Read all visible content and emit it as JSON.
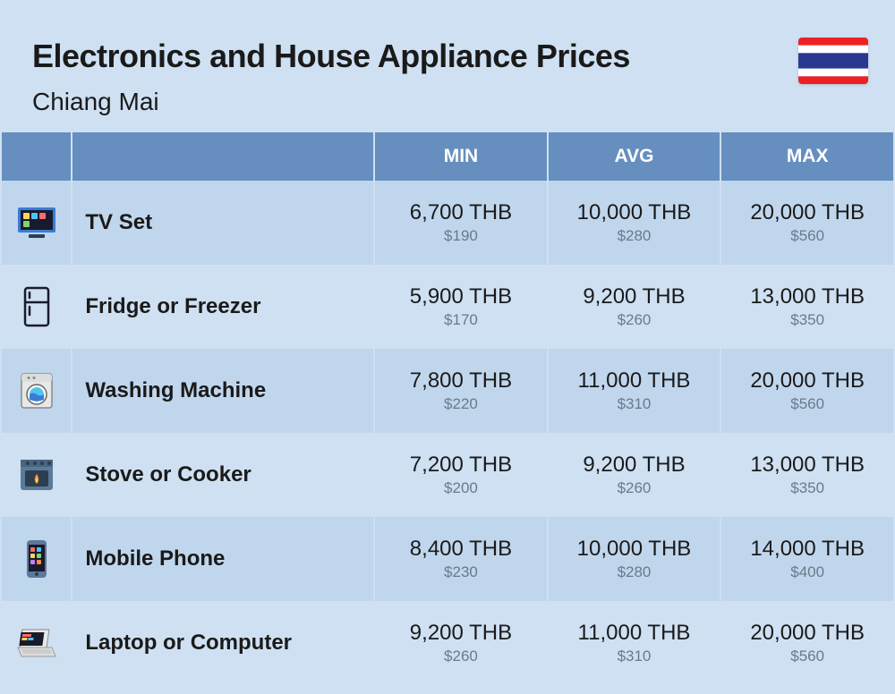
{
  "header": {
    "title": "Electronics and House Appliance Prices",
    "subtitle": "Chiang Mai"
  },
  "flag": {
    "stripes": [
      "#ed2024",
      "#ffffff",
      "#2a3990",
      "#2a3990",
      "#ffffff",
      "#ed2024"
    ]
  },
  "columns": {
    "min": "MIN",
    "avg": "AVG",
    "max": "MAX"
  },
  "colors": {
    "page_bg": "#cee0f2",
    "row_odd": "#c0d6ec",
    "row_even": "#cee0f2",
    "header_bg": "#668fbf",
    "header_text": "#ffffff",
    "price_main": "#1a1a1a",
    "price_sub": "#6a7a8a"
  },
  "rows": [
    {
      "icon": "tv",
      "label": "TV Set",
      "min_thb": "6,700 THB",
      "min_usd": "$190",
      "avg_thb": "10,000 THB",
      "avg_usd": "$280",
      "max_thb": "20,000 THB",
      "max_usd": "$560"
    },
    {
      "icon": "fridge",
      "label": "Fridge or Freezer",
      "min_thb": "5,900 THB",
      "min_usd": "$170",
      "avg_thb": "9,200 THB",
      "avg_usd": "$260",
      "max_thb": "13,000 THB",
      "max_usd": "$350"
    },
    {
      "icon": "washer",
      "label": "Washing Machine",
      "min_thb": "7,800 THB",
      "min_usd": "$220",
      "avg_thb": "11,000 THB",
      "avg_usd": "$310",
      "max_thb": "20,000 THB",
      "max_usd": "$560"
    },
    {
      "icon": "stove",
      "label": "Stove or Cooker",
      "min_thb": "7,200 THB",
      "min_usd": "$200",
      "avg_thb": "9,200 THB",
      "avg_usd": "$260",
      "max_thb": "13,000 THB",
      "max_usd": "$350"
    },
    {
      "icon": "phone",
      "label": "Mobile Phone",
      "min_thb": "8,400 THB",
      "min_usd": "$230",
      "avg_thb": "10,000 THB",
      "avg_usd": "$280",
      "max_thb": "14,000 THB",
      "max_usd": "$400"
    },
    {
      "icon": "laptop",
      "label": "Laptop or Computer",
      "min_thb": "9,200 THB",
      "min_usd": "$260",
      "avg_thb": "11,000 THB",
      "avg_usd": "$310",
      "max_thb": "20,000 THB",
      "max_usd": "$560"
    }
  ]
}
